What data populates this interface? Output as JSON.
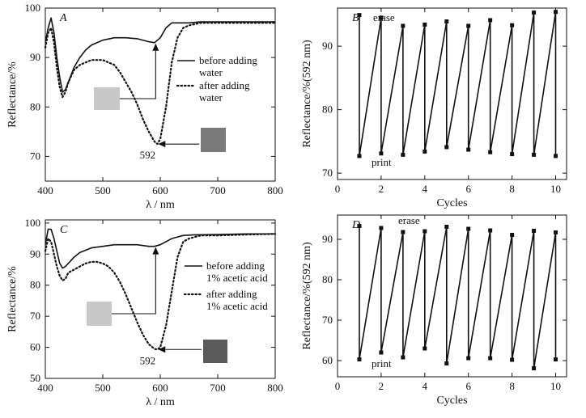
{
  "colors": {
    "line": "#111111",
    "swatch_light": "#c8c8c8",
    "swatch_dark": "#7a7a7a",
    "swatch_darker": "#5a5a5a"
  },
  "chart_data": [
    {
      "type": "line",
      "panel": "A",
      "xlabel": "λ / nm",
      "ylabel": "Reflectance/%",
      "xlim": [
        400,
        800
      ],
      "ylim": [
        65,
        100
      ],
      "xticks": [
        400,
        500,
        600,
        700,
        800
      ],
      "yticks": [
        70,
        80,
        90,
        100
      ],
      "legend": {
        "placement": "right",
        "entries": [
          "before adding water",
          "after adding water"
        ]
      },
      "annotation": "592",
      "series": [
        {
          "name": "before adding water",
          "style": "solid",
          "x": [
            400,
            405,
            410,
            415,
            420,
            425,
            430,
            435,
            440,
            450,
            460,
            470,
            480,
            500,
            520,
            540,
            560,
            580,
            590,
            600,
            610,
            620,
            630,
            640,
            650,
            670,
            700,
            750,
            800
          ],
          "y": [
            93,
            96,
            98,
            95,
            90,
            86,
            83,
            83.5,
            85,
            88,
            90,
            91.5,
            92.5,
            93.5,
            94,
            94,
            93.8,
            93.2,
            93,
            94,
            96,
            97,
            97,
            97,
            97,
            97.2,
            97.2,
            97.2,
            97.2
          ]
        },
        {
          "name": "after adding water",
          "style": "dotted",
          "x": [
            400,
            405,
            410,
            415,
            420,
            425,
            430,
            435,
            440,
            450,
            460,
            470,
            480,
            490,
            500,
            510,
            520,
            530,
            540,
            550,
            560,
            570,
            580,
            590,
            595,
            600,
            610,
            620,
            630,
            640,
            650,
            670,
            700,
            750,
            800
          ],
          "y": [
            92,
            95,
            96,
            93,
            88,
            84,
            82,
            83,
            85,
            87.5,
            88.5,
            89,
            89.5,
            89.5,
            89.5,
            89,
            88.5,
            87,
            85,
            83,
            80.5,
            77.5,
            75,
            73,
            72.5,
            73.5,
            80,
            89,
            94,
            96,
            96.5,
            97,
            97,
            97,
            97
          ]
        }
      ]
    },
    {
      "type": "line",
      "panel": "B",
      "xlabel": "Cycles",
      "ylabel": "Reflectance/%(592 nm)",
      "xlim": [
        0,
        10.5
      ],
      "ylim": [
        69,
        96
      ],
      "xticks": [
        0,
        2,
        4,
        6,
        8,
        10
      ],
      "yticks": [
        70,
        80,
        90
      ],
      "annotations": [
        "erase",
        "print"
      ],
      "print_values": [
        72.7,
        73.1,
        72.9,
        73.4,
        74.1,
        73.7,
        73.3,
        73.0,
        72.9,
        72.7
      ],
      "erase_values": [
        94.9,
        94.5,
        93.2,
        93.4,
        93.9,
        93.2,
        94.1,
        93.3,
        95.3,
        95.4
      ]
    },
    {
      "type": "line",
      "panel": "C",
      "xlabel": "λ / nm",
      "ylabel": "Reflectance/%",
      "xlim": [
        400,
        800
      ],
      "ylim": [
        50,
        101
      ],
      "xticks": [
        400,
        500,
        600,
        700,
        800
      ],
      "yticks": [
        50,
        60,
        70,
        80,
        90,
        100
      ],
      "legend": {
        "placement": "right",
        "entries": [
          "before adding 1% acetic acid",
          "after adding 1% acetic acid"
        ]
      },
      "annotation": "592",
      "series": [
        {
          "name": "before adding 1% acetic acid",
          "style": "solid",
          "x": [
            400,
            405,
            410,
            415,
            420,
            425,
            430,
            435,
            440,
            450,
            460,
            480,
            500,
            520,
            540,
            560,
            580,
            590,
            600,
            610,
            620,
            630,
            640,
            660,
            700,
            750,
            800
          ],
          "y": [
            93,
            98,
            98,
            95,
            91,
            87,
            85.5,
            86,
            87,
            89,
            90.5,
            92,
            92.5,
            93,
            93,
            93,
            92.5,
            92.5,
            93,
            94,
            95,
            95.5,
            96,
            96.2,
            96.3,
            96.5,
            96.5
          ]
        },
        {
          "name": "after adding 1% acetic acid",
          "style": "dotted",
          "x": [
            400,
            405,
            410,
            415,
            420,
            425,
            430,
            435,
            440,
            450,
            460,
            470,
            480,
            490,
            500,
            510,
            520,
            530,
            540,
            550,
            560,
            570,
            580,
            590,
            595,
            600,
            610,
            620,
            630,
            640,
            650,
            670,
            700,
            750,
            800
          ],
          "y": [
            91,
            95,
            94,
            90,
            86,
            83,
            81.5,
            82,
            84,
            85,
            86,
            87,
            87.5,
            87.5,
            87,
            86,
            84,
            81,
            77,
            72.5,
            68,
            64,
            61,
            59.5,
            59.3,
            60,
            67,
            78,
            89,
            94,
            95,
            96,
            96,
            96.3,
            96.5
          ]
        }
      ]
    },
    {
      "type": "line",
      "panel": "D",
      "xlabel": "Cycles",
      "ylabel": "Reflectance/%(592 nm)",
      "xlim": [
        0,
        10.5
      ],
      "ylim": [
        56,
        96
      ],
      "xticks": [
        0,
        2,
        4,
        6,
        8,
        10
      ],
      "yticks": [
        60,
        70,
        80,
        90
      ],
      "annotations": [
        "erase",
        "print"
      ],
      "print_values": [
        60.3,
        62.0,
        60.8,
        63.0,
        59.3,
        60.6,
        60.6,
        60.2,
        58.1,
        60.3
      ],
      "erase_values": [
        93.3,
        92.8,
        91.8,
        92.0,
        93.1,
        92.6,
        92.2,
        91.1,
        92.1,
        91.7
      ]
    }
  ]
}
